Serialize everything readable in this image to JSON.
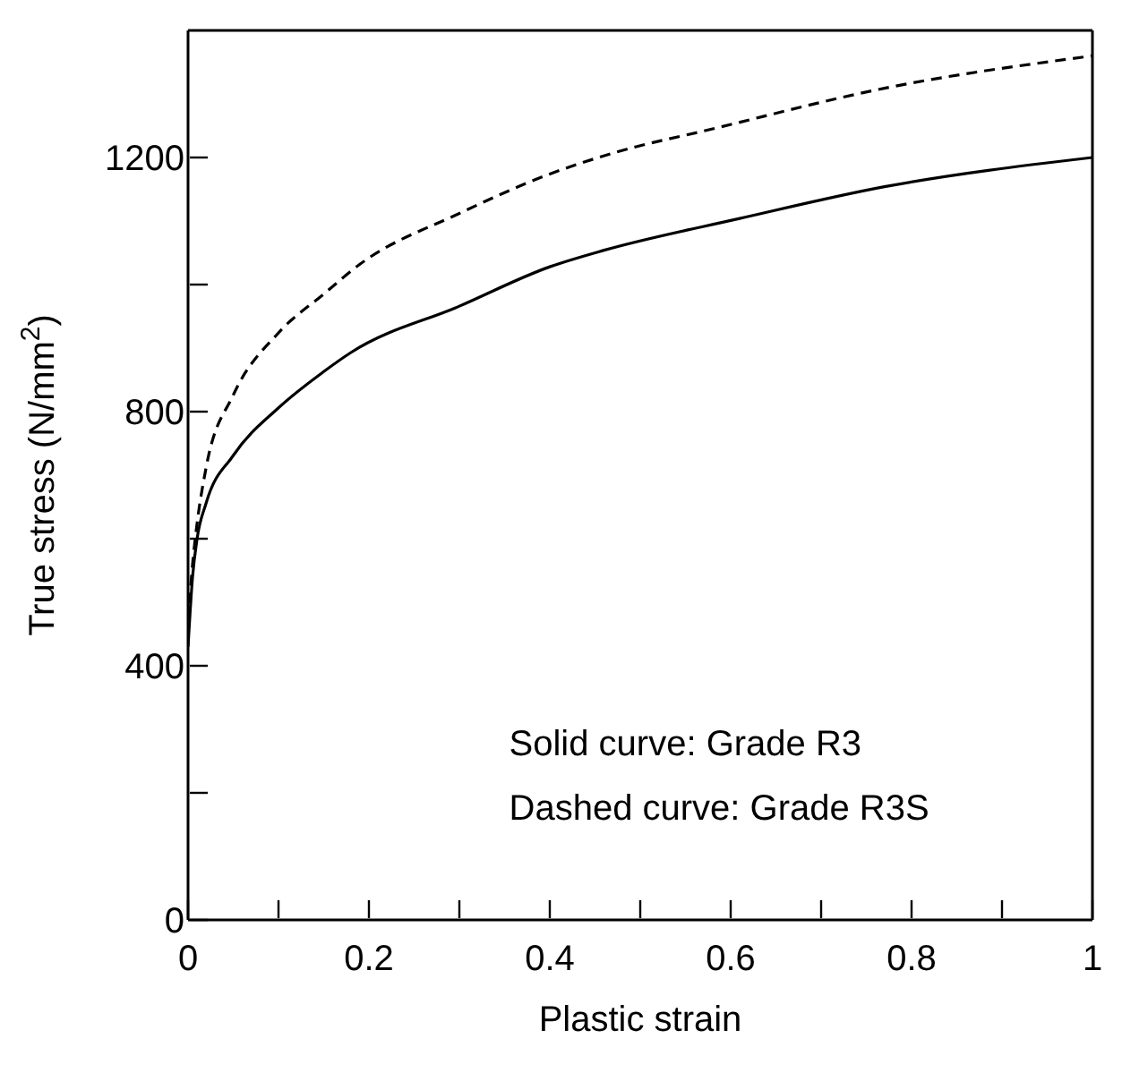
{
  "chart_data": {
    "type": "line",
    "xlabel": "Plastic strain",
    "ylabel": "True stress  (N/mm$^{2}$)",
    "xlim": [
      0,
      1
    ],
    "ylim": [
      0,
      1400
    ],
    "xticks": [
      0,
      {
        "value": 0.1,
        "label": null
      },
      0.2,
      {
        "value": 0.3,
        "label": null
      },
      0.4,
      {
        "value": 0.5,
        "label": null
      },
      0.6,
      {
        "value": 0.7,
        "label": null
      },
      0.8,
      {
        "value": 0.9,
        "label": null
      },
      1
    ],
    "yticks": [
      0,
      {
        "value": 200,
        "label": null
      },
      400,
      {
        "value": 600,
        "label": null
      },
      800,
      {
        "value": 1000,
        "label": null
      },
      1200
    ],
    "grid": false,
    "marker": "none",
    "series": [
      {
        "color": "#000000",
        "line_style": "solid",
        "x": [
          0,
          0.005,
          0.01,
          0.02,
          0.05,
          0.1,
          0.15,
          0.18,
          0.3,
          0.4,
          0.46,
          0.61,
          0.77,
          1
        ],
        "values": [
          430,
          540,
          600,
          656,
          731,
          806,
          863,
          893,
          966,
          1028,
          1054,
          1104,
          1154,
          1200
        ]
      },
      {
        "color": "#000000",
        "line_style": "dashed",
        "x": [
          0,
          0.005,
          0.01,
          0.02,
          0.05,
          0.1,
          0.15,
          0.19,
          0.3,
          0.4,
          0.47,
          0.58,
          0.77,
          1
        ],
        "values": [
          470,
          560,
          624,
          712,
          826,
          924,
          985,
          1032,
          1112,
          1174,
          1207,
          1245,
          1309,
          1360
        ]
      }
    ],
    "annotations": [
      "Solid curve: Grade R3",
      "Dashed curve: Grade R3S"
    ]
  }
}
